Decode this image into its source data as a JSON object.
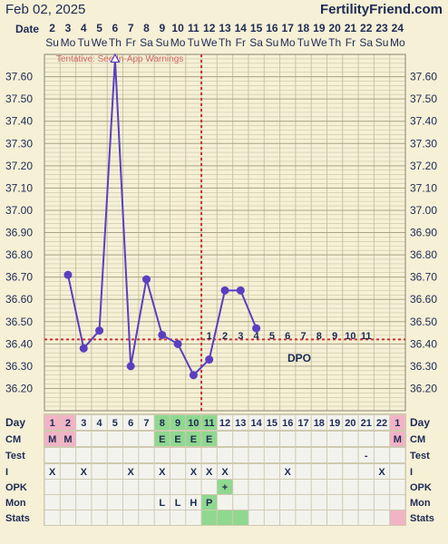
{
  "header": {
    "date": "Feb 02, 2025",
    "site": "FertilityFriend.com",
    "date_label": "Date"
  },
  "date_numbers": [
    "2",
    "3",
    "4",
    "5",
    "6",
    "7",
    "8",
    "9",
    "10",
    "11",
    "12",
    "13",
    "14",
    "15",
    "16",
    "17",
    "18",
    "19",
    "20",
    "21",
    "22",
    "23",
    "24"
  ],
  "weekdays": [
    "Su",
    "Mo",
    "Tu",
    "We",
    "Th",
    "Fr",
    "Sa",
    "Su",
    "Mo",
    "Tu",
    "We",
    "Th",
    "Fr",
    "Sa",
    "Su",
    "Mo",
    "Tu",
    "We",
    "Th",
    "Fr",
    "Sa",
    "Su",
    "Mo"
  ],
  "warning": "Tentative: See In-App Warnings",
  "dpo_label": "DPO",
  "dpo_numbers": [
    "1",
    "2",
    "3",
    "4",
    "5",
    "6",
    "7",
    "8",
    "9",
    "10",
    "11"
  ],
  "row_labels": [
    "Day",
    "CM",
    "Test",
    "I",
    "OPK",
    "Mon",
    "Stats"
  ],
  "day_numbers": [
    "1",
    "2",
    "3",
    "4",
    "5",
    "6",
    "7",
    "8",
    "9",
    "10",
    "11",
    "12",
    "13",
    "14",
    "15",
    "16",
    "17",
    "18",
    "19",
    "20",
    "21",
    "22",
    "1"
  ],
  "cm": [
    "M",
    "M",
    "",
    "",
    "",
    "",
    "",
    "E",
    "E",
    "E",
    "E",
    "",
    "",
    "",
    "",
    "",
    "",
    "",
    "",
    "",
    "",
    "",
    "M"
  ],
  "test": [
    "",
    "",
    "",
    "",
    "",
    "",
    "",
    "",
    "",
    "",
    "",
    "",
    "",
    "",
    "",
    "",
    "",
    "",
    "",
    "",
    "-",
    "",
    ""
  ],
  "intercourse": [
    "X",
    "",
    "X",
    "",
    "",
    "X",
    "",
    "X",
    "",
    "X",
    "X",
    "X",
    "",
    "",
    "",
    "X",
    "",
    "",
    "",
    "",
    "",
    "X",
    ""
  ],
  "opk": [
    "",
    "",
    "",
    "",
    "",
    "",
    "",
    "",
    "",
    "",
    "",
    "+",
    "",
    "",
    "",
    "",
    "",
    "",
    "",
    "",
    "",
    "",
    ""
  ],
  "mon": [
    "",
    "",
    "",
    "",
    "",
    "",
    "",
    "L",
    "L",
    "H",
    "P",
    "",
    "",
    "",
    "",
    "",
    "",
    "",
    "",
    "",
    "",
    "",
    ""
  ],
  "colors": {
    "line": "#5a3fc0",
    "coverline": "#cc3333",
    "ovulation": "#cc3333",
    "grid": "#c9c4a4",
    "cm_fertile": "#8fd88f",
    "cm_menses": "#f2b3c5",
    "opk_positive": "#8fd88f",
    "mon_peak": "#8fd88f",
    "cell": "#f3f3ee"
  },
  "chart_data": {
    "type": "line",
    "x": [
      2,
      3,
      4,
      5,
      6,
      7,
      8,
      9,
      10,
      11,
      12,
      13,
      14,
      15,
      16,
      17,
      18,
      19,
      20,
      21,
      22,
      23,
      24
    ],
    "series": [
      {
        "values": [
          null,
          36.71,
          36.38,
          36.46,
          37.68,
          36.3,
          36.69,
          36.44,
          36.4,
          36.26,
          36.33,
          36.64,
          36.64,
          36.47,
          null,
          null,
          null,
          null,
          null,
          null,
          null,
          null,
          null
        ],
        "open_markers": [
          6
        ],
        "excluded_markers": []
      }
    ],
    "coverline": 36.42,
    "ovulation_x": 12,
    "ylim": [
      36.1,
      37.7
    ],
    "yticks": [
      "37.60",
      "37.50",
      "37.40",
      "37.30",
      "37.20",
      "37.10",
      "37.00",
      "36.90",
      "36.80",
      "36.70",
      "36.60",
      "36.50",
      "36.40",
      "36.30",
      "36.20"
    ],
    "grid": true
  }
}
